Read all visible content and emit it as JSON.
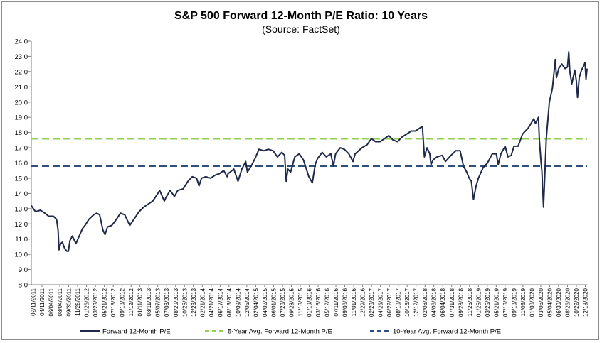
{
  "chart_data": {
    "type": "line",
    "title": "S&P 500 Forward 12-Month P/E Ratio: 10 Years",
    "subtitle": "(Source: FactSet)",
    "xlabel": "",
    "ylabel": "",
    "ylim": [
      8.0,
      24.0
    ],
    "ytick_labels": [
      "8.0",
      "9.0",
      "10.0",
      "11.0",
      "12.0",
      "13.0",
      "14.0",
      "15.0",
      "16.0",
      "17.0",
      "18.0",
      "19.0",
      "20.0",
      "21.0",
      "22.0",
      "23.0",
      "24.0"
    ],
    "xtick_labels": [
      "02/11/2011",
      "04/11/2011",
      "06/04/2011",
      "08/04/2011",
      "09/30/2011",
      "11/28/2011",
      "01/26/2012",
      "03/23/2012",
      "05/21/2012",
      "07/18/2012",
      "09/13/2012",
      "11/12/2012",
      "01/11/2013",
      "03/11/2013",
      "05/07/2013",
      "07/03/2013",
      "08/29/2013",
      "10/25/2013",
      "12/23/2013",
      "02/21/2014",
      "04/21/2014",
      "06/17/2014",
      "08/13/2014",
      "10/09/2014",
      "12/05/2014",
      "02/04/2015",
      "04/02/2015",
      "06/01/2015",
      "07/28/2015",
      "09/23/2015",
      "11/18/2015",
      "01/19/2016",
      "03/16/2016",
      "05/12/2016",
      "07/11/2016",
      "09/06/2016",
      "11/01/2016",
      "12/29/2016",
      "02/28/2017",
      "04/26/2017",
      "06/22/2017",
      "08/18/2017",
      "10/16/2017",
      "12/12/2017",
      "02/08/2018",
      "04/06/2018",
      "06/04/2018",
      "07/31/2018",
      "09/28/2018",
      "11/26/2018",
      "01/25/2019",
      "03/25/2019",
      "05/21/2019",
      "07/18/2019",
      "09/13/2019",
      "11/08/2019",
      "01/08/2020",
      "03/06/2020",
      "05/04/2020",
      "06/30/2020",
      "08/26/2020",
      "10/22/2020",
      "12/18/2020"
    ],
    "x_start": "2011-02-11",
    "x_end": "2020-12-31",
    "series": [
      {
        "name": "Forward 12-Month P/E",
        "color": "#1f2a4a",
        "points": [
          [
            "2011-02-11",
            13.2
          ],
          [
            "2011-03-10",
            12.8
          ],
          [
            "2011-04-11",
            12.9
          ],
          [
            "2011-05-10",
            12.7
          ],
          [
            "2011-06-04",
            12.5
          ],
          [
            "2011-07-05",
            12.5
          ],
          [
            "2011-07-25",
            12.3
          ],
          [
            "2011-08-04",
            11.6
          ],
          [
            "2011-08-10",
            10.3
          ],
          [
            "2011-08-20",
            10.7
          ],
          [
            "2011-09-01",
            10.8
          ],
          [
            "2011-09-15",
            10.4
          ],
          [
            "2011-09-30",
            10.2
          ],
          [
            "2011-10-10",
            10.2
          ],
          [
            "2011-10-20",
            10.9
          ],
          [
            "2011-11-05",
            11.2
          ],
          [
            "2011-11-28",
            10.7
          ],
          [
            "2011-12-15",
            11.1
          ],
          [
            "2012-01-10",
            11.7
          ],
          [
            "2012-01-26",
            11.9
          ],
          [
            "2012-02-20",
            12.3
          ],
          [
            "2012-03-23",
            12.6
          ],
          [
            "2012-04-10",
            12.7
          ],
          [
            "2012-04-30",
            12.6
          ],
          [
            "2012-05-21",
            11.6
          ],
          [
            "2012-06-04",
            11.3
          ],
          [
            "2012-06-20",
            11.8
          ],
          [
            "2012-07-18",
            11.9
          ],
          [
            "2012-08-10",
            12.2
          ],
          [
            "2012-09-13",
            12.7
          ],
          [
            "2012-10-10",
            12.6
          ],
          [
            "2012-11-12",
            11.9
          ],
          [
            "2012-12-15",
            12.4
          ],
          [
            "2013-01-11",
            12.8
          ],
          [
            "2013-02-10",
            13.1
          ],
          [
            "2013-03-11",
            13.3
          ],
          [
            "2013-04-10",
            13.5
          ],
          [
            "2013-05-07",
            13.9
          ],
          [
            "2013-05-25",
            14.2
          ],
          [
            "2013-06-24",
            13.5
          ],
          [
            "2013-07-03",
            13.7
          ],
          [
            "2013-08-01",
            14.2
          ],
          [
            "2013-08-29",
            13.8
          ],
          [
            "2013-09-20",
            14.2
          ],
          [
            "2013-10-25",
            14.3
          ],
          [
            "2013-11-25",
            14.8
          ],
          [
            "2013-12-23",
            15.1
          ],
          [
            "2014-01-20",
            15.0
          ],
          [
            "2014-02-05",
            14.5
          ],
          [
            "2014-02-21",
            15.0
          ],
          [
            "2014-03-21",
            15.1
          ],
          [
            "2014-04-21",
            15.0
          ],
          [
            "2014-05-20",
            15.2
          ],
          [
            "2014-06-17",
            15.3
          ],
          [
            "2014-07-15",
            15.5
          ],
          [
            "2014-08-07",
            15.1
          ],
          [
            "2014-08-13",
            15.3
          ],
          [
            "2014-09-19",
            15.6
          ],
          [
            "2014-10-09",
            15.0
          ],
          [
            "2014-10-16",
            14.8
          ],
          [
            "2014-11-10",
            15.6
          ],
          [
            "2014-12-05",
            16.1
          ],
          [
            "2014-12-16",
            15.4
          ],
          [
            "2015-01-15",
            15.9
          ],
          [
            "2015-02-04",
            16.3
          ],
          [
            "2015-03-01",
            16.9
          ],
          [
            "2015-04-02",
            16.8
          ],
          [
            "2015-05-01",
            16.9
          ],
          [
            "2015-06-01",
            16.8
          ],
          [
            "2015-06-29",
            16.4
          ],
          [
            "2015-07-28",
            16.7
          ],
          [
            "2015-08-15",
            16.5
          ],
          [
            "2015-08-25",
            14.8
          ],
          [
            "2015-09-05",
            15.6
          ],
          [
            "2015-09-23",
            15.4
          ],
          [
            "2015-10-20",
            16.4
          ],
          [
            "2015-11-18",
            16.6
          ],
          [
            "2015-12-15",
            16.2
          ],
          [
            "2016-01-19",
            15.1
          ],
          [
            "2016-02-11",
            14.7
          ],
          [
            "2016-03-01",
            15.9
          ],
          [
            "2016-03-16",
            16.3
          ],
          [
            "2016-04-15",
            16.7
          ],
          [
            "2016-05-12",
            16.4
          ],
          [
            "2016-06-10",
            16.6
          ],
          [
            "2016-06-27",
            15.8
          ],
          [
            "2016-07-11",
            16.6
          ],
          [
            "2016-08-10",
            17.0
          ],
          [
            "2016-09-06",
            16.9
          ],
          [
            "2016-10-05",
            16.6
          ],
          [
            "2016-11-01",
            16.1
          ],
          [
            "2016-11-15",
            16.6
          ],
          [
            "2016-12-29",
            17.0
          ],
          [
            "2017-02-01",
            17.2
          ],
          [
            "2017-02-28",
            17.6
          ],
          [
            "2017-03-28",
            17.4
          ],
          [
            "2017-04-26",
            17.4
          ],
          [
            "2017-05-25",
            17.6
          ],
          [
            "2017-06-22",
            17.8
          ],
          [
            "2017-07-20",
            17.5
          ],
          [
            "2017-08-18",
            17.4
          ],
          [
            "2017-09-15",
            17.7
          ],
          [
            "2017-10-16",
            17.9
          ],
          [
            "2017-11-15",
            18.1
          ],
          [
            "2017-12-12",
            18.1
          ],
          [
            "2018-01-10",
            18.3
          ],
          [
            "2018-01-26",
            18.4
          ],
          [
            "2018-02-08",
            16.4
          ],
          [
            "2018-02-25",
            17.0
          ],
          [
            "2018-03-15",
            16.6
          ],
          [
            "2018-03-23",
            15.9
          ],
          [
            "2018-04-06",
            16.2
          ],
          [
            "2018-05-01",
            16.4
          ],
          [
            "2018-06-04",
            16.5
          ],
          [
            "2018-06-25",
            16.1
          ],
          [
            "2018-07-31",
            16.5
          ],
          [
            "2018-08-31",
            16.8
          ],
          [
            "2018-09-28",
            16.8
          ],
          [
            "2018-10-20",
            15.8
          ],
          [
            "2018-11-10",
            15.4
          ],
          [
            "2018-11-26",
            15.0
          ],
          [
            "2018-12-10",
            14.8
          ],
          [
            "2018-12-24",
            13.6
          ],
          [
            "2019-01-10",
            14.5
          ],
          [
            "2019-01-25",
            15.0
          ],
          [
            "2019-02-25",
            15.7
          ],
          [
            "2019-03-25",
            16.0
          ],
          [
            "2019-04-25",
            16.6
          ],
          [
            "2019-05-21",
            16.6
          ],
          [
            "2019-06-03",
            15.9
          ],
          [
            "2019-06-20",
            16.6
          ],
          [
            "2019-07-18",
            17.1
          ],
          [
            "2019-08-05",
            16.4
          ],
          [
            "2019-08-26",
            16.5
          ],
          [
            "2019-09-13",
            17.1
          ],
          [
            "2019-10-10",
            17.1
          ],
          [
            "2019-11-08",
            17.9
          ],
          [
            "2019-12-15",
            18.3
          ],
          [
            "2020-01-08",
            18.7
          ],
          [
            "2020-01-20",
            18.9
          ],
          [
            "2020-01-31",
            18.6
          ],
          [
            "2020-02-19",
            19.0
          ],
          [
            "2020-02-25",
            17.5
          ],
          [
            "2020-03-06",
            16.2
          ],
          [
            "2020-03-13",
            15.4
          ],
          [
            "2020-03-23",
            13.1
          ],
          [
            "2020-03-30",
            14.8
          ],
          [
            "2020-04-10",
            17.6
          ],
          [
            "2020-04-30",
            20.0
          ],
          [
            "2020-05-20",
            20.9
          ],
          [
            "2020-06-08",
            22.8
          ],
          [
            "2020-06-15",
            21.6
          ],
          [
            "2020-06-30",
            22.2
          ],
          [
            "2020-07-20",
            22.5
          ],
          [
            "2020-08-10",
            22.2
          ],
          [
            "2020-08-26",
            22.3
          ],
          [
            "2020-09-03",
            23.3
          ],
          [
            "2020-09-10",
            22.0
          ],
          [
            "2020-09-23",
            21.2
          ],
          [
            "2020-10-12",
            22.1
          ],
          [
            "2020-10-22",
            21.4
          ],
          [
            "2020-10-30",
            20.3
          ],
          [
            "2020-11-10",
            21.6
          ],
          [
            "2020-11-25",
            22.1
          ],
          [
            "2020-12-10",
            22.4
          ],
          [
            "2020-12-18",
            22.6
          ],
          [
            "2020-12-24",
            21.5
          ],
          [
            "2020-12-31",
            22.2
          ]
        ]
      },
      {
        "name": "5-Year Avg. Forward 12-Month P/E",
        "color": "#92d050",
        "dashed": true,
        "value": 17.6
      },
      {
        "name": "10-Year Avg. Forward 12-Month P/E",
        "color": "#2e4f7f",
        "dashed": true,
        "value": 15.8
      }
    ],
    "grid": false,
    "legend_position": "bottom"
  }
}
